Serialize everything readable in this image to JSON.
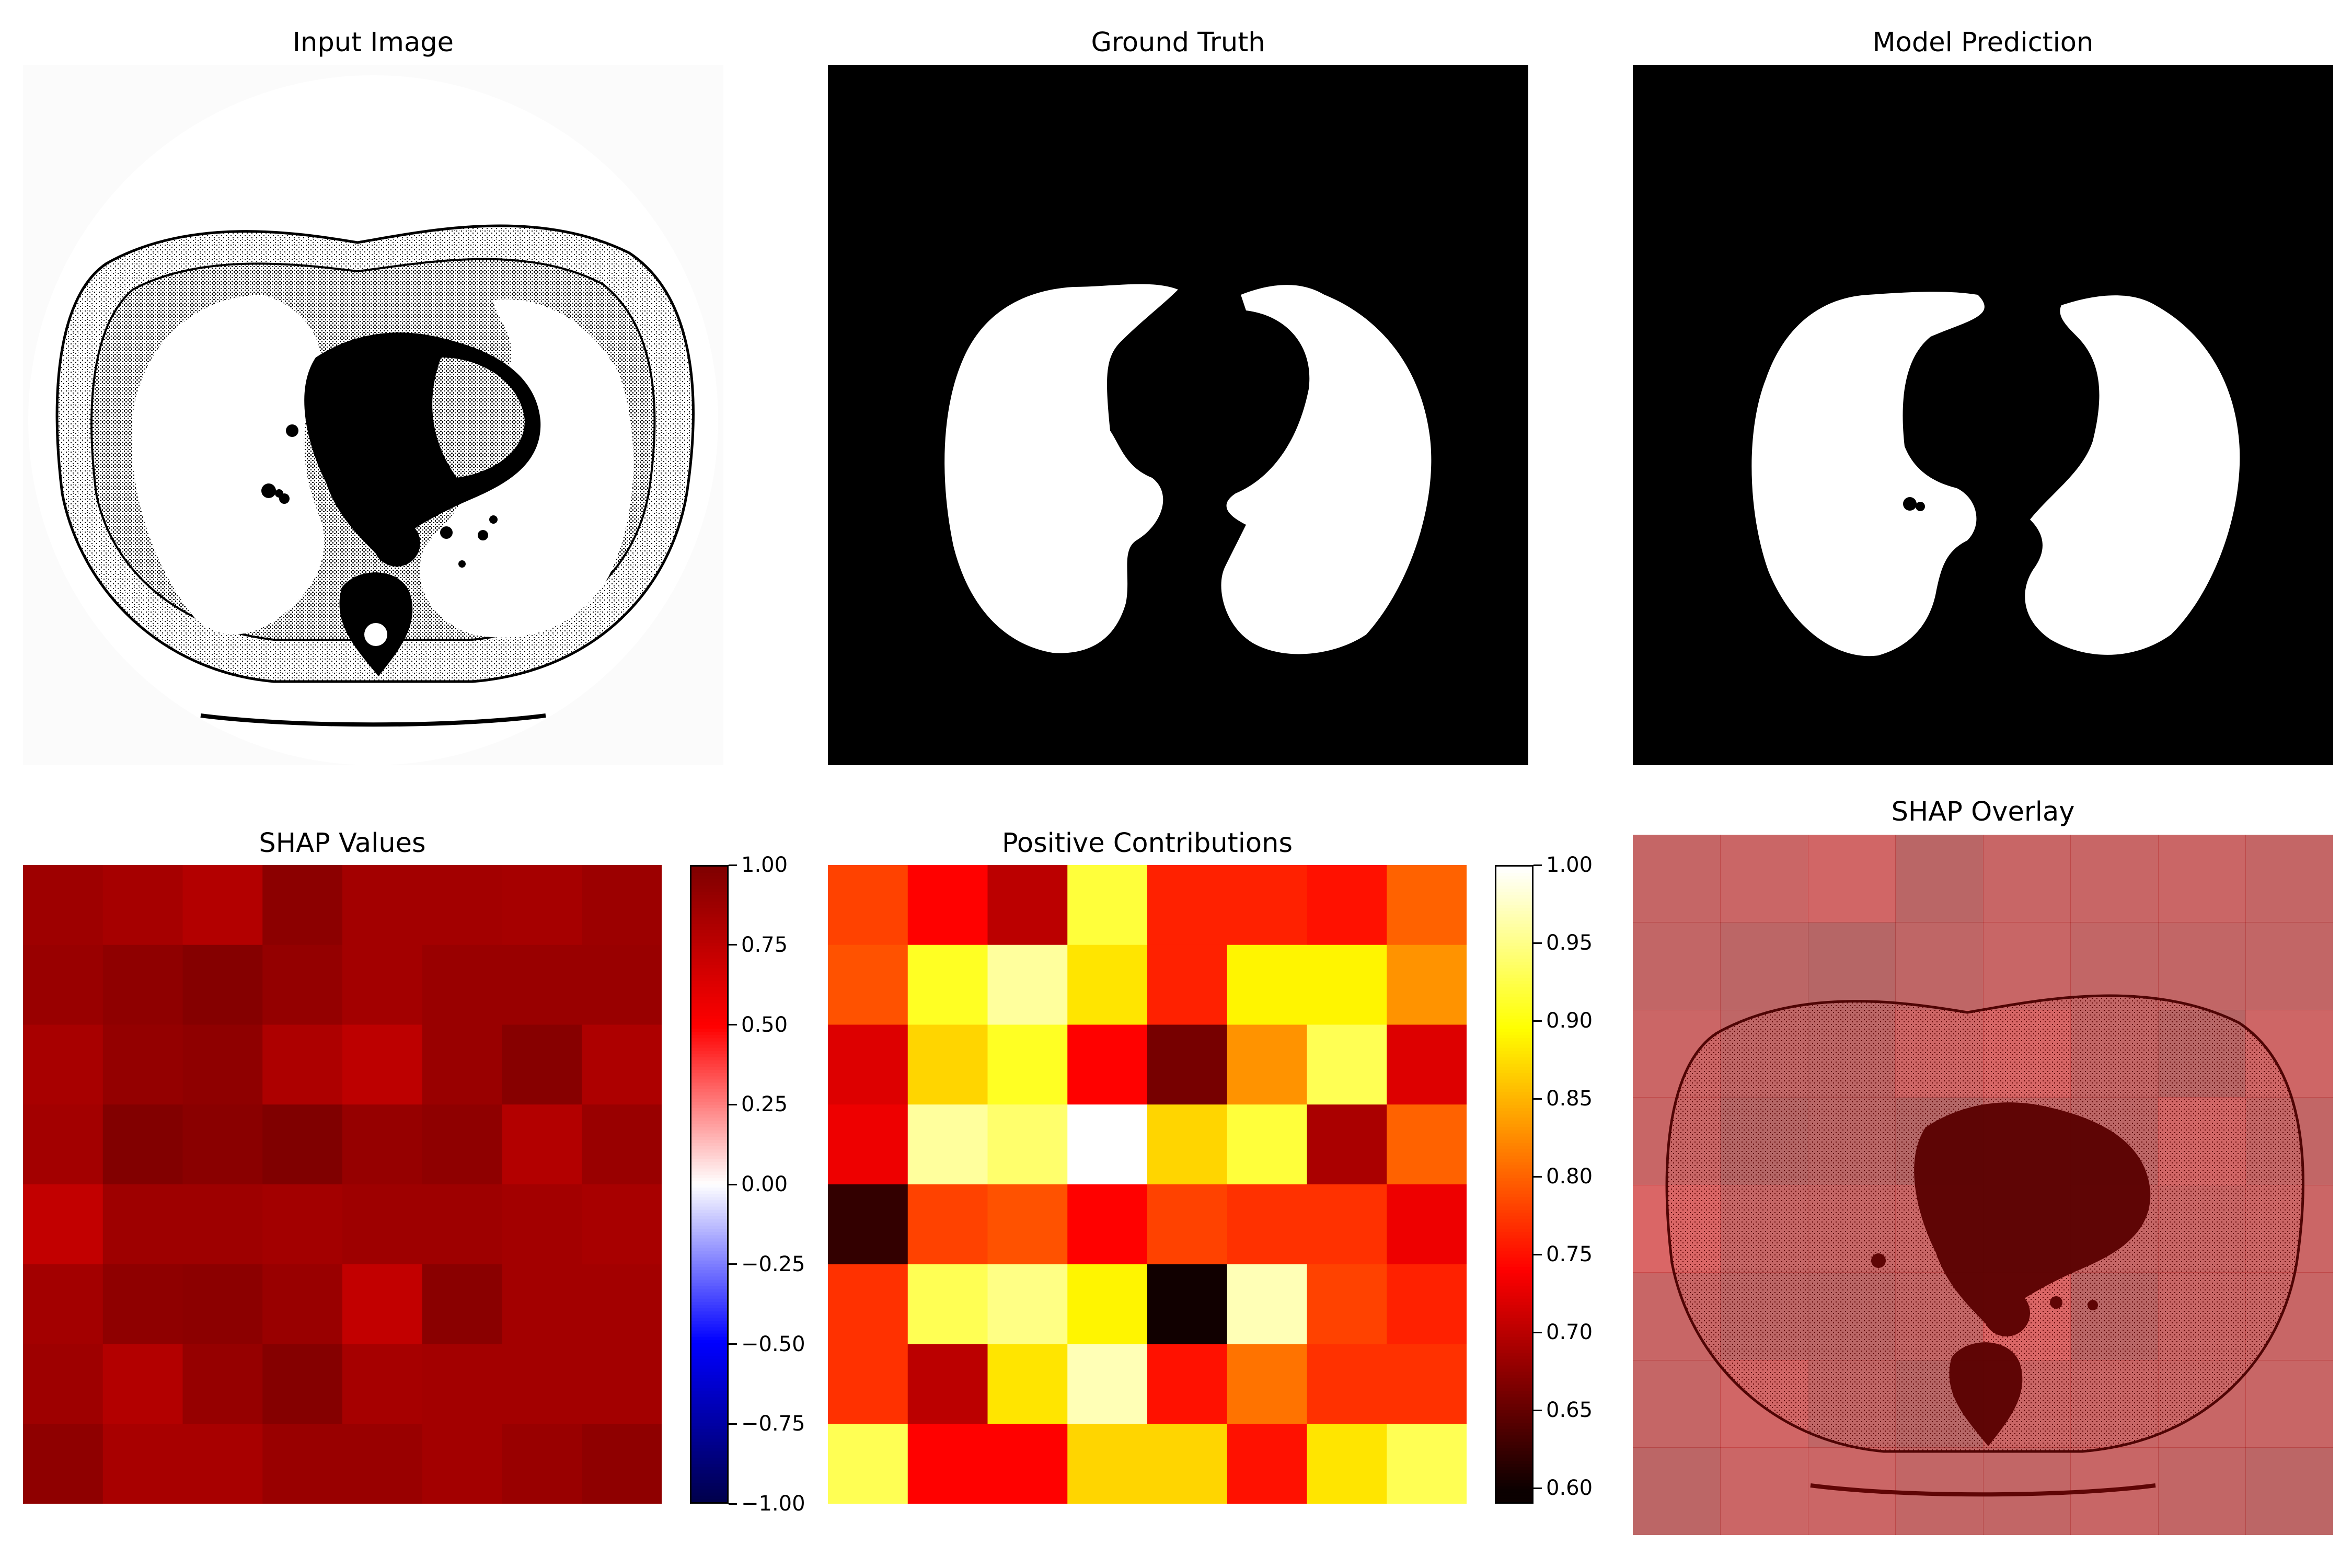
{
  "colors": {
    "background": "#ffffff",
    "mask_fg": "#ffffff",
    "mask_bg": "#000000",
    "overlay_tint": "#d86060"
  },
  "panels": {
    "input_title": "Input Image",
    "gt_title": "Ground Truth",
    "pred_title": "Model Prediction",
    "shap_title": "SHAP Values",
    "pos_title": "Positive Contributions",
    "overlay_title": "SHAP Overlay"
  },
  "chart_data": [
    {
      "type": "heatmap",
      "title": "SHAP Values",
      "colormap": "seismic",
      "vmin": -1.0,
      "vmax": 1.0,
      "colorbar_ticks": [
        "1.00",
        "0.75",
        "0.50",
        "0.25",
        "0.00",
        "−0.25",
        "−0.50",
        "−0.75",
        "−1.00"
      ],
      "values": [
        [
          0.88,
          0.85,
          0.8,
          0.95,
          0.86,
          0.86,
          0.85,
          0.89
        ],
        [
          0.9,
          0.94,
          0.98,
          0.92,
          0.86,
          0.9,
          0.9,
          0.9
        ],
        [
          0.84,
          0.92,
          0.94,
          0.82,
          0.76,
          0.9,
          0.97,
          0.82
        ],
        [
          0.86,
          0.99,
          0.96,
          1.0,
          0.91,
          0.94,
          0.8,
          0.9
        ],
        [
          0.74,
          0.88,
          0.88,
          0.86,
          0.88,
          0.88,
          0.86,
          0.84
        ],
        [
          0.86,
          0.94,
          0.95,
          0.9,
          0.74,
          0.96,
          0.86,
          0.86
        ],
        [
          0.88,
          0.8,
          0.91,
          0.98,
          0.85,
          0.86,
          0.86,
          0.86
        ],
        [
          0.94,
          0.84,
          0.84,
          0.9,
          0.9,
          0.86,
          0.9,
          0.94
        ]
      ]
    },
    {
      "type": "heatmap",
      "title": "Positive Contributions",
      "colormap": "hot",
      "vmin": 0.59,
      "vmax": 1.0,
      "colorbar_ticks": [
        "1.00",
        "0.95",
        "0.90",
        "0.85",
        "0.80",
        "0.75",
        "0.70",
        "0.65",
        "0.60"
      ],
      "values": [
        [
          0.78,
          0.74,
          0.7,
          0.92,
          0.76,
          0.76,
          0.75,
          0.8
        ],
        [
          0.79,
          0.91,
          0.96,
          0.88,
          0.76,
          0.89,
          0.89,
          0.83
        ],
        [
          0.72,
          0.87,
          0.91,
          0.74,
          0.66,
          0.83,
          0.93,
          0.72
        ],
        [
          0.73,
          0.96,
          0.94,
          1.0,
          0.87,
          0.92,
          0.69,
          0.8
        ],
        [
          0.62,
          0.78,
          0.79,
          0.74,
          0.78,
          0.77,
          0.77,
          0.73
        ],
        [
          0.77,
          0.93,
          0.95,
          0.89,
          0.6,
          0.97,
          0.78,
          0.76
        ],
        [
          0.77,
          0.7,
          0.88,
          0.97,
          0.75,
          0.81,
          0.77,
          0.77
        ],
        [
          0.93,
          0.74,
          0.74,
          0.87,
          0.87,
          0.75,
          0.88,
          0.93
        ]
      ]
    }
  ]
}
